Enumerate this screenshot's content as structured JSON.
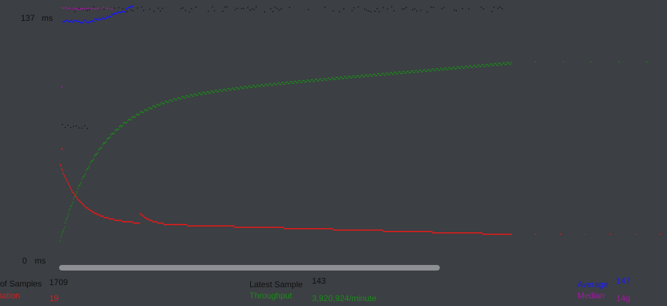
{
  "y_axis": {
    "max_value": "137",
    "min_value": "0",
    "unit": "ms"
  },
  "colors": {
    "background": "#3c3f43",
    "data": "#111111",
    "average": "#1a1af0",
    "median": "#a01aa0",
    "deviation": "#e11b1b",
    "throughput": "#1a8a1a"
  },
  "stats": {
    "samples_label": "of Samples",
    "samples_value": "1709",
    "deviation_label": "iation",
    "deviation_value": "19",
    "latest_label": "Latest Sample",
    "latest_value": "143",
    "throughput_label": "Throughput",
    "throughput_value": "3,920,924/minute",
    "average_label": "Average",
    "average_value": "147",
    "median_label": "Median",
    "median_value": "14g"
  }
}
